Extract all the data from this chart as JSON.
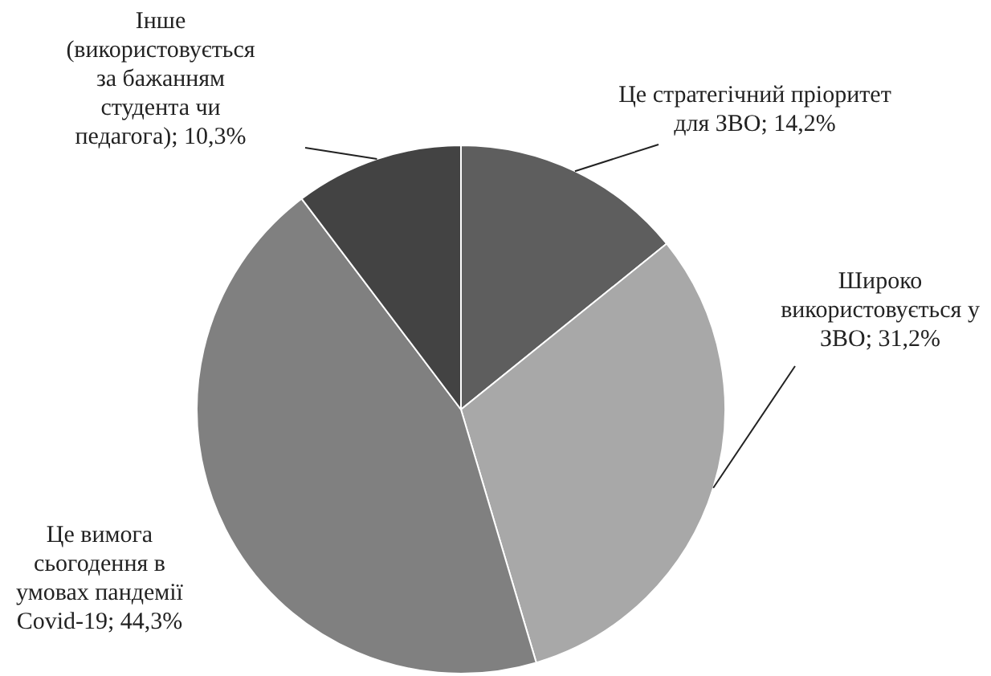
{
  "chart_data": {
    "type": "pie",
    "categories": [
      "Це стратегічний пріоритет для ЗВО",
      "Широко використовується у ЗВО",
      "Це вимога сьогодення в умовах пандемії Covid-19",
      "Інше (використовується за бажанням студента чи педагога)"
    ],
    "values": [
      14.2,
      31.2,
      44.3,
      10.3
    ],
    "value_labels": [
      "14,2%",
      "31,2%",
      "44,3%",
      "10,3%"
    ],
    "colors": [
      "#5e5e5e",
      "#a8a8a8",
      "#808080",
      "#434343"
    ],
    "legend": false
  }
}
